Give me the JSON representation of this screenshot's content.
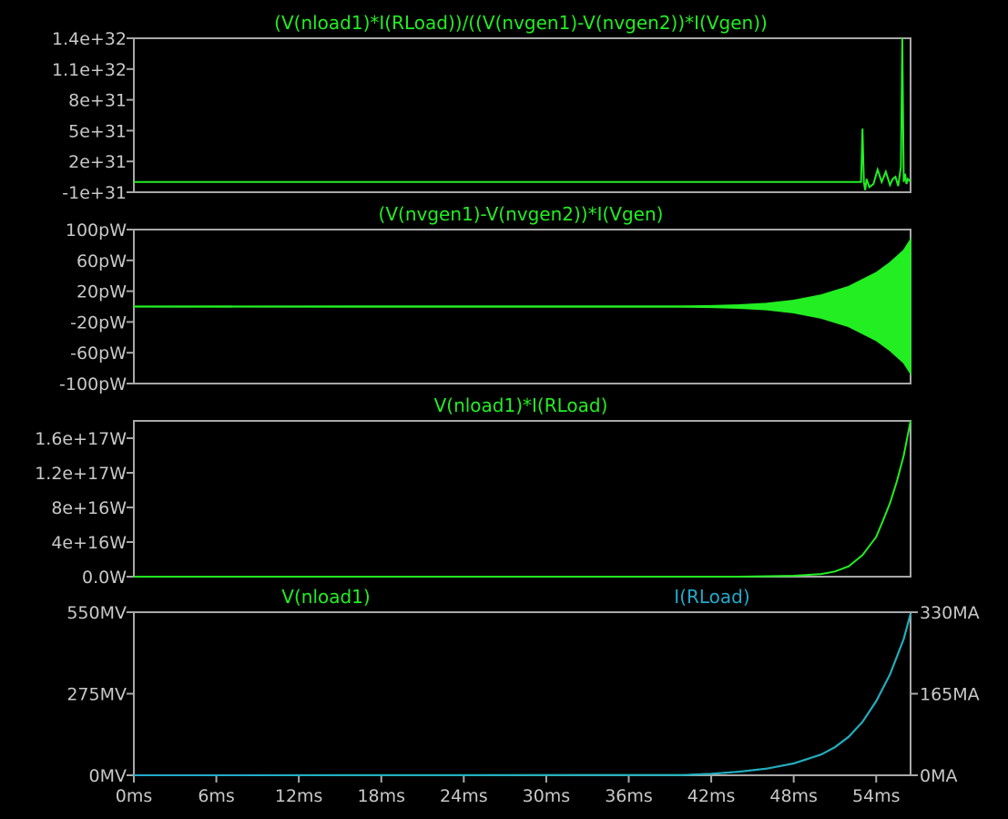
{
  "colors": {
    "background": "#000000",
    "frame": "#a8a8a8",
    "text": "#c8c8c8",
    "green": "#22ee22",
    "cyan": "#22aacc"
  },
  "chart_data": [
    {
      "type": "line",
      "title": "(V(nload1)*I(RLoad))/((V(nvgen1)-V(nvgen2))*I(Vgen))",
      "xlim": [
        0,
        56.5
      ],
      "ylim": [
        -1e+31,
        1.4e+32
      ],
      "yticks": [
        "1.4e+32",
        "1.1e+32",
        "8e+31",
        "5e+31",
        "2e+31",
        "-1e+31"
      ],
      "series": [
        {
          "name": "(V(nload1)*I(RLoad))/((V(nvgen1)-V(nvgen2))*I(Vgen))",
          "color": "#22ee22",
          "x": [
            0,
            52.9,
            53.0,
            53.1,
            53.2,
            53.3,
            53.5,
            53.8,
            54.1,
            54.4,
            54.7,
            55.0,
            55.2,
            55.4,
            55.6,
            55.8,
            55.9,
            56.0,
            56.1,
            56.2,
            56.3,
            56.5
          ],
          "y": [
            0,
            0,
            5.2e+31,
            0,
            -8e+30,
            3e+30,
            -5e+30,
            -2e+30,
            1.2e+31,
            0,
            1e+31,
            -3e+30,
            3e+30,
            5e+30,
            -4e+30,
            1.5e+31,
            1.4e+32,
            0,
            8e+30,
            -2e+30,
            3e+30,
            0
          ]
        }
      ]
    },
    {
      "type": "area",
      "title": "(V(nvgen1)-V(nvgen2))*I(Vgen)",
      "xlim": [
        0,
        56.5
      ],
      "ylim": [
        -100,
        100
      ],
      "yunit": "pW",
      "yticks": [
        "100pW",
        "60pW",
        "20pW",
        "-20pW",
        "-60pW",
        "-100pW"
      ],
      "series": [
        {
          "name": "(V(nvgen1)-V(nvgen2))*I(Vgen)",
          "color": "#22ee22",
          "x": [
            0,
            40,
            42,
            44,
            46,
            48,
            50,
            52,
            54,
            55,
            56,
            56.5
          ],
          "y": [
            0.5,
            0.6,
            1,
            2,
            4,
            8,
            15,
            26,
            44,
            57,
            73,
            87
          ]
        }
      ]
    },
    {
      "type": "line",
      "title": "V(nload1)*I(RLoad)",
      "xlim": [
        0,
        56.5
      ],
      "ylim": [
        0,
        1.8e+17
      ],
      "yticks": [
        "1.6e+17W",
        "1.2e+17W",
        "8e+16W",
        "4e+16W",
        "0.0W"
      ],
      "series": [
        {
          "name": "V(nload1)*I(RLoad)",
          "color": "#22ee22",
          "x": [
            0,
            44,
            48,
            50,
            51,
            52,
            53,
            54,
            54.5,
            55,
            55.5,
            56,
            56.5
          ],
          "y": [
            0,
            0,
            1000000000000000.0,
            3000000000000000.0,
            6000000000000000.0,
            1.2e+16,
            2.5e+16,
            4.6e+16,
            6.5e+16,
            8.5e+16,
            1.1e+17,
            1.4e+17,
            1.8e+17
          ]
        }
      ]
    },
    {
      "type": "line",
      "xlim": [
        0,
        56.5
      ],
      "ylim": [
        0,
        550
      ],
      "yticks": [
        "550MV",
        "275MV",
        "0MV"
      ],
      "y2lim": [
        0,
        330
      ],
      "y2ticks": [
        "330MA",
        "165MA",
        "0MA"
      ],
      "xticks": [
        "0ms",
        "6ms",
        "12ms",
        "18ms",
        "24ms",
        "30ms",
        "36ms",
        "42ms",
        "48ms",
        "54ms"
      ],
      "series": [
        {
          "name": "V(nload1)",
          "color": "#22ee22",
          "axis": "left",
          "x": [
            0,
            40,
            42,
            44,
            46,
            48,
            50,
            51,
            52,
            53,
            54,
            55,
            56,
            56.5
          ],
          "y": [
            0,
            1,
            5,
            12,
            22,
            40,
            70,
            95,
            130,
            180,
            250,
            340,
            460,
            545
          ]
        },
        {
          "name": "I(RLoad)",
          "color": "#22aacc",
          "axis": "right",
          "x": [
            0,
            40,
            42,
            44,
            46,
            48,
            50,
            51,
            52,
            53,
            54,
            55,
            56,
            56.5
          ],
          "y": [
            0,
            0.6,
            3,
            7.2,
            13.2,
            24,
            42,
            57,
            78,
            108,
            150,
            204,
            276,
            327
          ]
        }
      ]
    }
  ]
}
